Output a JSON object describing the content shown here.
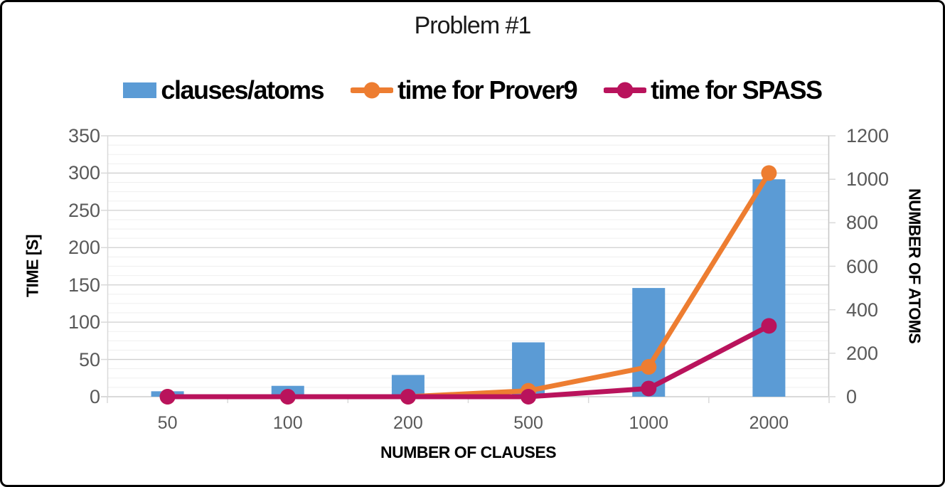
{
  "chart_data": {
    "type": "combo-bar-line",
    "title": "Problem #1",
    "categories": [
      50,
      100,
      200,
      500,
      1000,
      2000
    ],
    "x_axis": {
      "title": "NUMBER OF CLAUSES"
    },
    "left_axis": {
      "title": "TIME [S]",
      "min": 0,
      "max": 350,
      "ticks": [
        0,
        50,
        100,
        150,
        200,
        250,
        300,
        350
      ]
    },
    "right_axis": {
      "title": "NUMBER OF ATOMS",
      "min": 0,
      "max": 1200,
      "ticks": [
        0,
        200,
        400,
        600,
        800,
        1000,
        1200
      ]
    },
    "grid": {
      "major_interval": 50,
      "minor_interval": 12.5,
      "horizontal_only": true
    },
    "legend_position": "top",
    "series": [
      {
        "id": "clauses-atoms",
        "name": "clauses/atoms",
        "type": "bar",
        "axis": "right",
        "color": "#5B9BD5",
        "values": [
          25,
          50,
          100,
          250,
          500,
          1000
        ]
      },
      {
        "id": "prover9",
        "name": "time for Prover9",
        "type": "line",
        "axis": "left",
        "color": "#ED7D31",
        "values": [
          0,
          0,
          0,
          8,
          40,
          300
        ]
      },
      {
        "id": "spass",
        "name": "time for SPASS",
        "type": "line",
        "axis": "left",
        "color": "#B9135C",
        "values": [
          0,
          0,
          0,
          0,
          11,
          95
        ]
      }
    ],
    "style": {
      "tick_label_color": "#595959",
      "major_grid_color": "#CFCFCF",
      "minor_grid_color": "#EFEFEF",
      "axis_line_color": "#D9D9D9"
    }
  }
}
